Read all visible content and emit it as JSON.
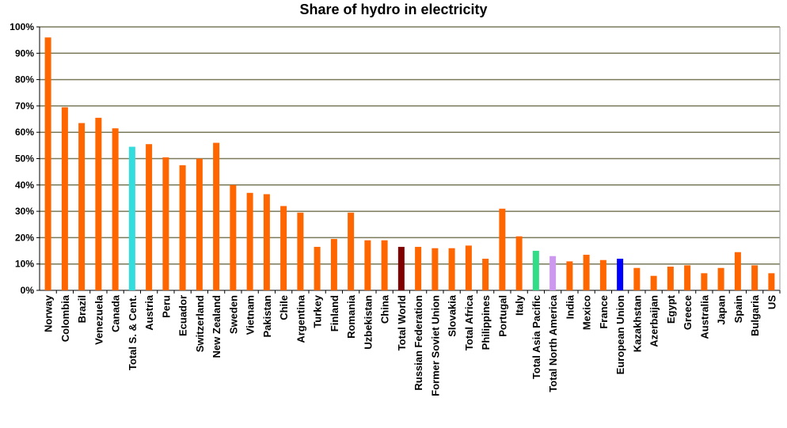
{
  "chart_data": {
    "type": "bar",
    "title": "Share of hydro in electricity",
    "xlabel": "",
    "ylabel": "",
    "ylim": [
      0,
      100
    ],
    "y_ticks": [
      "0%",
      "10%",
      "20%",
      "30%",
      "40%",
      "50%",
      "60%",
      "70%",
      "80%",
      "90%",
      "100%"
    ],
    "grid": true,
    "grid_color": "#7a7a5a",
    "default_bar_color": "#ff6600",
    "categories": [
      "Norway",
      "Colombia",
      "Brazil",
      "Venezuela",
      "Canada",
      "Total S. & Cent.",
      "Austria",
      "Peru",
      "Ecuador",
      "Switzerland",
      "New Zealand",
      "Sweden",
      "Vietnam",
      "Pakistan",
      "Chile",
      "Argentina",
      "Turkey",
      "Finland",
      "Romania",
      "Uzbekistan",
      "China",
      "Total World",
      "Russian Federation",
      "Former Soviet Union",
      "Slovakia",
      "Total Africa",
      "Philippines",
      "Portugal",
      "Italy",
      "Total Asia Pacific",
      "Total North America",
      "India",
      "Mexico",
      "France",
      "European Union",
      "Kazakhstan",
      "Azerbaijan",
      "Egypt",
      "Greece",
      "Australia",
      "Japan",
      "Spain",
      "Bulgaria",
      "US"
    ],
    "values": [
      96,
      69.5,
      63.5,
      65.5,
      61.5,
      54.5,
      55.5,
      50.5,
      47.5,
      50,
      56,
      40,
      37,
      36.5,
      32,
      29.5,
      16.5,
      19.5,
      29.5,
      19,
      19,
      16.5,
      16.5,
      16,
      16,
      17,
      12,
      31,
      20.5,
      15,
      13,
      11,
      13.5,
      11.5,
      12,
      8.5,
      5.5,
      9,
      9.5,
      6.5,
      8.5,
      14.5,
      9.5,
      6.5
    ],
    "highlights": {
      "Total S. & Cent.": "#33dddd",
      "Total World": "#800000",
      "Total Asia Pacific": "#33dd88",
      "Total North America": "#cc99ee",
      "European Union": "#0000ff"
    }
  }
}
